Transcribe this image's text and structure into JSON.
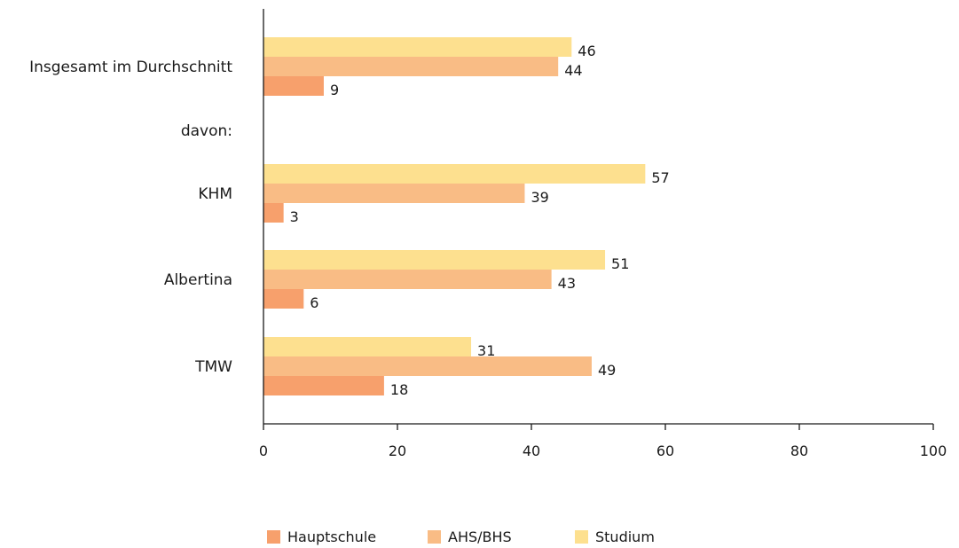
{
  "chart_data": {
    "type": "bar",
    "orientation": "horizontal",
    "categories": [
      "Insgesamt im Durchschnitt",
      "davon:",
      "KHM",
      "Albertina",
      "TMW"
    ],
    "series": [
      {
        "name": "Studium",
        "color": "#fde08f",
        "values": [
          46,
          null,
          57,
          51,
          31
        ]
      },
      {
        "name": "AHS/BHS",
        "color": "#f9bc85",
        "values": [
          44,
          null,
          39,
          43,
          49
        ]
      },
      {
        "name": "Hauptschule",
        "color": "#f7a06c",
        "values": [
          9,
          null,
          3,
          6,
          18
        ]
      }
    ],
    "value_labels": {
      "Studium": [
        "46",
        "",
        "57",
        "51",
        "31"
      ],
      "AHS/BHS": [
        "44",
        "",
        "39",
        "43",
        "49"
      ],
      "Hauptschule": [
        "9",
        "",
        "3",
        "6",
        "18"
      ]
    },
    "xlim": [
      0,
      100
    ],
    "x_ticks": [
      "0",
      "20",
      "40",
      "60",
      "80",
      "100"
    ],
    "legend": {
      "position": "bottom",
      "entries": [
        {
          "name": "Hauptschule",
          "color": "#f7a06c"
        },
        {
          "name": "AHS/BHS",
          "color": "#f9bc85"
        },
        {
          "name": "Studium",
          "color": "#fde08f"
        }
      ]
    },
    "grid": false
  }
}
